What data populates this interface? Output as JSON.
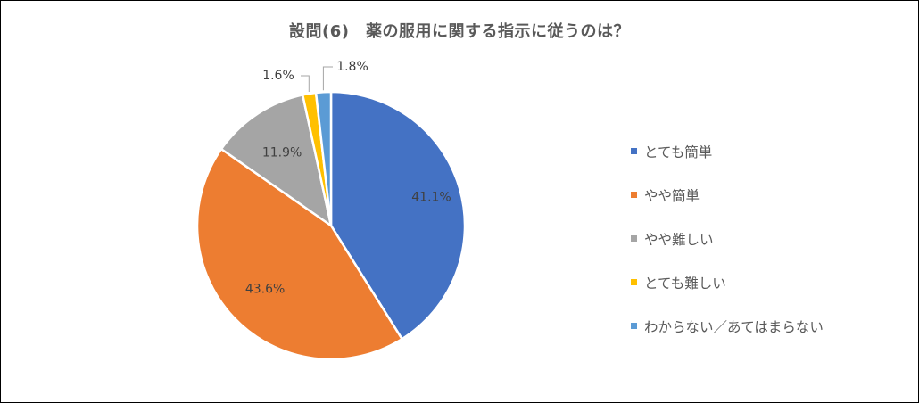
{
  "chart_data": {
    "type": "pie",
    "title": "設問(6)　薬の服用に関する指示に従うのは？",
    "slices": [
      {
        "label": "とても簡単",
        "value": 41.1,
        "value_label": "41.1%",
        "color": "#4472C4"
      },
      {
        "label": "やや簡単",
        "value": 43.6,
        "value_label": "43.6%",
        "color": "#ED7D31"
      },
      {
        "label": "やや難しい",
        "value": 11.9,
        "value_label": "11.9%",
        "color": "#A5A5A5"
      },
      {
        "label": "とても難しい",
        "value": 1.6,
        "value_label": "1.6%",
        "color": "#FFC000"
      },
      {
        "label": "わからない／あてはまらない",
        "value": 1.8,
        "value_label": "1.8%",
        "color": "#5B9BD5"
      }
    ],
    "start_angle": "12 o'clock",
    "direction": "clockwise",
    "legend_position": "right"
  }
}
